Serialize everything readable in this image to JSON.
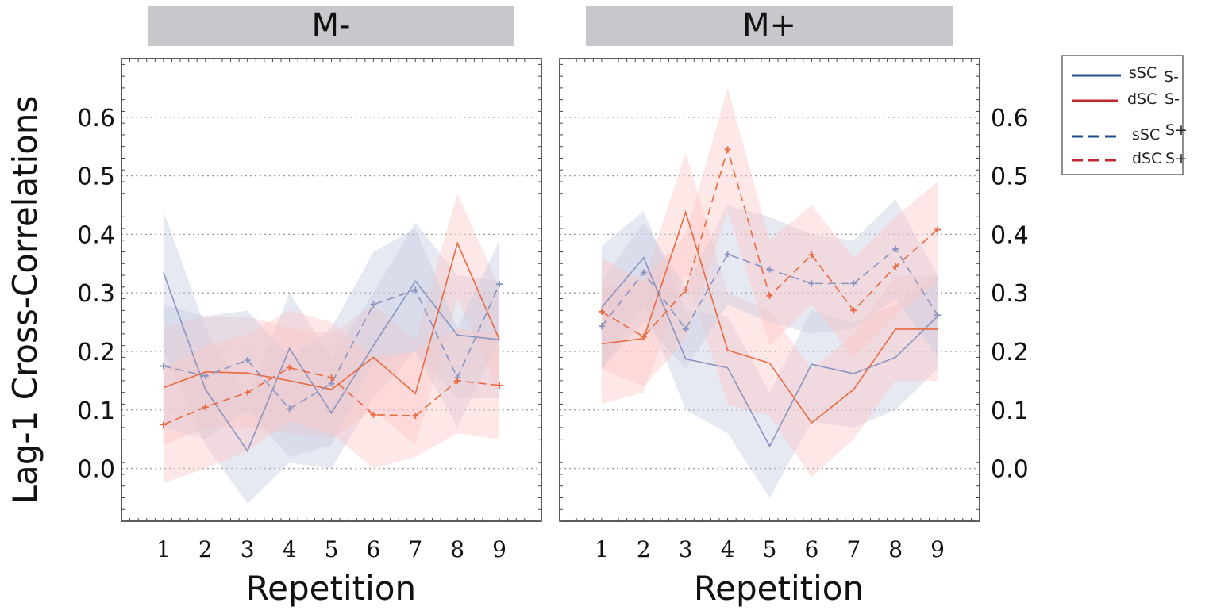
{
  "chart_data": {
    "type": "line",
    "ylabel": "Lag-1 Cross-Correlations",
    "xlabel": "Repetition",
    "x": [
      1,
      2,
      3,
      4,
      5,
      6,
      7,
      8,
      9
    ],
    "x_tick_labels": [
      "1",
      "2",
      "3",
      "4",
      "5",
      "6",
      "7",
      "8",
      "9"
    ],
    "xlim": [
      0.0,
      10.0
    ],
    "ylim": [
      -0.09,
      0.7
    ],
    "y_ticks": [
      0.0,
      0.1,
      0.2,
      0.3,
      0.4,
      0.5,
      0.6
    ],
    "y_tick_labels": [
      "0.0",
      "0.1",
      "0.2",
      "0.3",
      "0.4",
      "0.5",
      "0.6"
    ],
    "grid": "horizontal dotted",
    "legend": {
      "placement": "right",
      "entries": [
        {
          "name": "sSC",
          "group": "S-",
          "color": "#1f4e8c",
          "style": "solid"
        },
        {
          "name": "dSC",
          "group": "S-",
          "color": "#c0282d",
          "style": "solid"
        },
        {
          "name": "sSC",
          "group": "S+",
          "color": "#1f4e8c",
          "style": "dashed"
        },
        {
          "name": "dSC",
          "group": "S+",
          "color": "#c0282d",
          "style": "dashed"
        }
      ]
    },
    "colors": {
      "sSC_line": "#8a94c0",
      "dSC_line": "#e9693f",
      "sSC_band": "#c5cbe0",
      "dSC_band": "#fcc6c6"
    },
    "panels": [
      {
        "title": "M-",
        "y_axis_side": "left",
        "series": [
          {
            "name": "sSC S-",
            "style": "solid",
            "values": [
              0.335,
              0.135,
              0.03,
              0.205,
              0.095,
              0.21,
              0.32,
              0.228,
              0.22
            ],
            "lower": [
              0.2,
              0.04,
              -0.06,
              0.01,
              0.0,
              0.12,
              0.2,
              0.12,
              0.12
            ],
            "upper": [
              0.44,
              0.24,
              0.12,
              0.3,
              0.19,
              0.3,
              0.42,
              0.33,
              0.32
            ]
          },
          {
            "name": "dSC S-",
            "style": "solid",
            "values": [
              0.138,
              0.165,
              0.163,
              0.15,
              0.135,
              0.19,
              0.128,
              0.385,
              0.22
            ],
            "lower": [
              0.04,
              0.07,
              0.07,
              0.06,
              0.05,
              0.1,
              0.04,
              0.29,
              0.13
            ],
            "upper": [
              0.24,
              0.26,
              0.26,
              0.24,
              0.23,
              0.28,
              0.22,
              0.47,
              0.31
            ]
          },
          {
            "name": "sSC S+",
            "style": "dashed",
            "values": [
              0.175,
              0.158,
              0.185,
              0.102,
              0.145,
              0.28,
              0.305,
              0.155,
              0.315
            ],
            "lower": [
              0.07,
              0.05,
              0.1,
              0.02,
              0.04,
              0.18,
              0.2,
              0.07,
              0.22
            ],
            "upper": [
              0.28,
              0.26,
              0.27,
              0.19,
              0.24,
              0.37,
              0.41,
              0.24,
              0.39
            ]
          },
          {
            "name": "dSC S+",
            "style": "dashed",
            "values": [
              0.075,
              0.105,
              0.13,
              0.172,
              0.155,
              0.092,
              0.09,
              0.15,
              0.142
            ],
            "lower": [
              -0.025,
              0.0,
              0.03,
              0.08,
              0.06,
              0.0,
              0.02,
              0.06,
              0.05
            ],
            "upper": [
              0.17,
              0.21,
              0.23,
              0.27,
              0.25,
              0.19,
              0.2,
              0.24,
              0.23
            ]
          }
        ]
      },
      {
        "title": "M+",
        "y_axis_side": "right",
        "series": [
          {
            "name": "sSC S-",
            "style": "solid",
            "values": [
              0.275,
              0.36,
              0.187,
              0.172,
              0.038,
              0.178,
              0.162,
              0.19,
              0.26
            ],
            "lower": [
              0.17,
              0.28,
              0.1,
              0.06,
              -0.05,
              0.08,
              0.07,
              0.1,
              0.17
            ],
            "upper": [
              0.38,
              0.44,
              0.27,
              0.26,
              0.13,
              0.27,
              0.25,
              0.28,
              0.33
            ]
          },
          {
            "name": "dSC S-",
            "style": "solid",
            "values": [
              0.213,
              0.222,
              0.438,
              0.202,
              0.18,
              0.078,
              0.135,
              0.238,
              0.238
            ],
            "lower": [
              0.11,
              0.13,
              0.33,
              0.11,
              0.09,
              -0.015,
              0.05,
              0.15,
              0.15
            ],
            "upper": [
              0.31,
              0.32,
              0.54,
              0.3,
              0.27,
              0.17,
              0.23,
              0.33,
              0.33
            ]
          },
          {
            "name": "sSC S+",
            "style": "dashed",
            "values": [
              0.243,
              0.335,
              0.238,
              0.366,
              0.34,
              0.316,
              0.316,
              0.375,
              0.262
            ],
            "lower": [
              0.17,
              0.25,
              0.17,
              0.28,
              0.25,
              0.23,
              0.24,
              0.29,
              0.19
            ],
            "upper": [
              0.32,
              0.42,
              0.31,
              0.45,
              0.43,
              0.4,
              0.39,
              0.46,
              0.33
            ]
          },
          {
            "name": "dSC S+",
            "style": "dashed",
            "values": [
              0.268,
              0.225,
              0.305,
              0.545,
              0.295,
              0.365,
              0.27,
              0.345,
              0.408
            ],
            "lower": [
              0.17,
              0.14,
              0.22,
              0.44,
              0.21,
              0.28,
              0.19,
              0.26,
              0.32
            ],
            "upper": [
              0.36,
              0.32,
              0.4,
              0.65,
              0.39,
              0.45,
              0.36,
              0.43,
              0.49
            ]
          }
        ]
      }
    ]
  }
}
